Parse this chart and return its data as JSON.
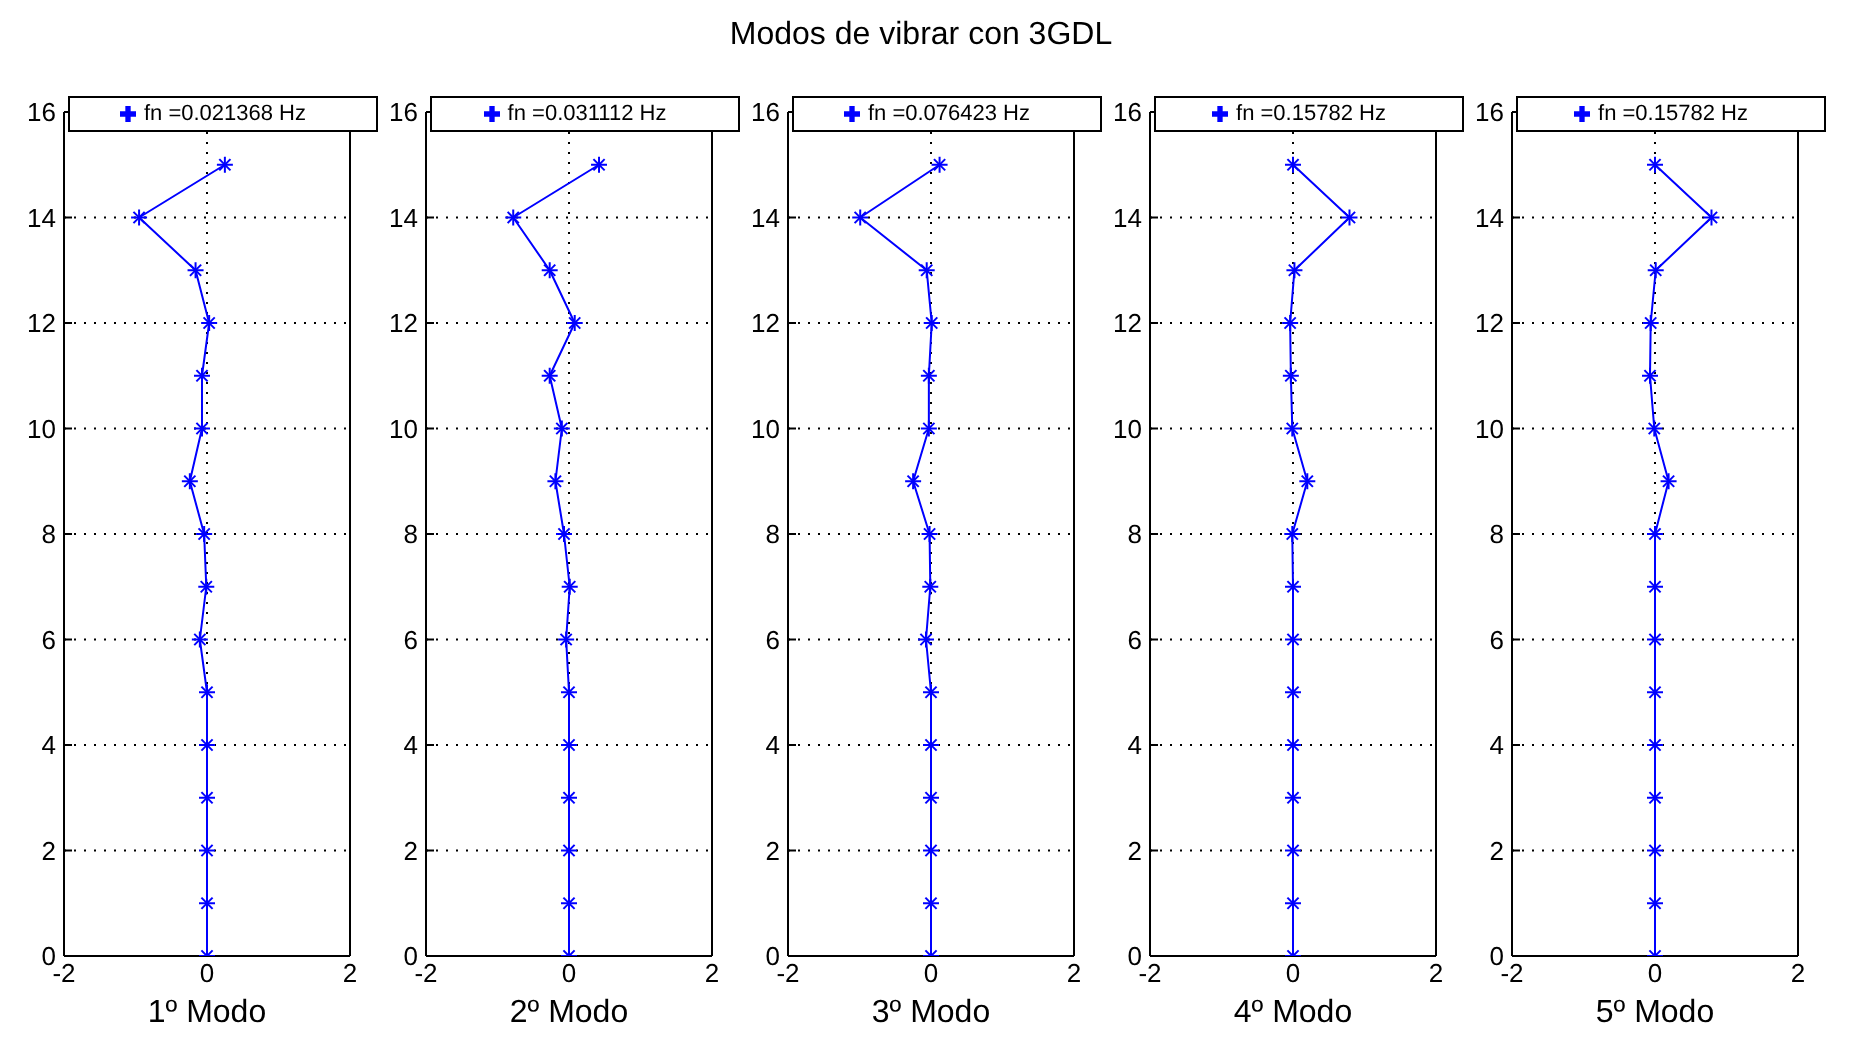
{
  "chart_data": [
    {
      "type": "line",
      "xlabel": "1º Modo",
      "orientation": "horizontal",
      "x": [
        0,
        1,
        2,
        3,
        4,
        5,
        6,
        7,
        8,
        9,
        10,
        11,
        12,
        13,
        14,
        15
      ],
      "series": [
        {
          "name": "fn =0.021368 Hz",
          "color": "#0000ff",
          "values": [
            0,
            0,
            0,
            0,
            0,
            0,
            -0.1,
            -0.01,
            -0.04,
            -0.24,
            -0.07,
            -0.07,
            0.03,
            -0.16,
            -0.95,
            0.25
          ]
        }
      ],
      "xlim": [
        -2,
        2
      ],
      "xticks": [
        -2,
        0,
        2
      ],
      "ylim": [
        0,
        16
      ],
      "yticks": [
        0,
        2,
        4,
        6,
        8,
        10,
        12,
        14,
        16
      ],
      "grid": true,
      "legend": "top",
      "marker": "cross",
      "line_style": "solid"
    },
    {
      "type": "line",
      "xlabel": "2º Modo",
      "orientation": "horizontal",
      "x": [
        0,
        1,
        2,
        3,
        4,
        5,
        6,
        7,
        8,
        9,
        10,
        11,
        12,
        13,
        14,
        15
      ],
      "series": [
        {
          "name": "fn =0.031112 Hz",
          "color": "#0000ff",
          "values": [
            0,
            0,
            0,
            0,
            0,
            0,
            -0.04,
            0.01,
            -0.07,
            -0.19,
            -0.1,
            -0.27,
            0.08,
            -0.27,
            -0.78,
            0.42
          ]
        }
      ],
      "xlim": [
        -2,
        2
      ],
      "xticks": [
        -2,
        0,
        2
      ],
      "ylim": [
        0,
        16
      ],
      "yticks": [
        0,
        2,
        4,
        6,
        8,
        10,
        12,
        14,
        16
      ],
      "grid": true,
      "legend": "top",
      "marker": "cross",
      "line_style": "solid"
    },
    {
      "type": "line",
      "title": "Modos de vibrar con 3GDL",
      "xlabel": "3º Modo",
      "orientation": "horizontal",
      "x": [
        0,
        1,
        2,
        3,
        4,
        5,
        6,
        7,
        8,
        9,
        10,
        11,
        12,
        13,
        14,
        15
      ],
      "series": [
        {
          "name": "fn =0.076423 Hz",
          "color": "#0000ff",
          "values": [
            0,
            0,
            0,
            0,
            0,
            0,
            -0.07,
            -0.01,
            -0.02,
            -0.25,
            -0.03,
            -0.03,
            0.01,
            -0.06,
            -0.99,
            0.12
          ]
        }
      ],
      "xlim": [
        -2,
        2
      ],
      "xticks": [
        -2,
        0,
        2
      ],
      "ylim": [
        0,
        16
      ],
      "yticks": [
        0,
        2,
        4,
        6,
        8,
        10,
        12,
        14,
        16
      ],
      "grid": true,
      "legend": "top",
      "marker": "cross",
      "line_style": "solid"
    },
    {
      "type": "line",
      "xlabel": "4º Modo",
      "orientation": "horizontal",
      "x": [
        0,
        1,
        2,
        3,
        4,
        5,
        6,
        7,
        8,
        9,
        10,
        11,
        12,
        13,
        14,
        15
      ],
      "series": [
        {
          "name": "fn =0.15782 Hz",
          "color": "#0000ff",
          "values": [
            0,
            0,
            0,
            0,
            0,
            0,
            0,
            0,
            -0.01,
            0.2,
            -0.01,
            -0.03,
            -0.04,
            0.02,
            0.79,
            0
          ]
        }
      ],
      "xlim": [
        -2,
        2
      ],
      "xticks": [
        -2,
        0,
        2
      ],
      "ylim": [
        0,
        16
      ],
      "yticks": [
        0,
        2,
        4,
        6,
        8,
        10,
        12,
        14,
        16
      ],
      "grid": true,
      "legend": "top",
      "marker": "cross",
      "line_style": "solid"
    },
    {
      "type": "line",
      "xlabel": "5º Modo",
      "orientation": "horizontal",
      "x": [
        0,
        1,
        2,
        3,
        4,
        5,
        6,
        7,
        8,
        9,
        10,
        11,
        12,
        13,
        14,
        15
      ],
      "series": [
        {
          "name": "fn =0.15782 Hz",
          "color": "#0000ff",
          "values": [
            0,
            0,
            0,
            0,
            0,
            0,
            0,
            0,
            0,
            0.19,
            -0.01,
            -0.07,
            -0.06,
            0.01,
            0.79,
            0
          ]
        }
      ],
      "xlim": [
        -2,
        2
      ],
      "xticks": [
        -2,
        0,
        2
      ],
      "ylim": [
        0,
        16
      ],
      "yticks": [
        0,
        2,
        4,
        6,
        8,
        10,
        12,
        14,
        16
      ],
      "grid": true,
      "legend": "top",
      "marker": "cross",
      "line_style": "solid"
    }
  ]
}
